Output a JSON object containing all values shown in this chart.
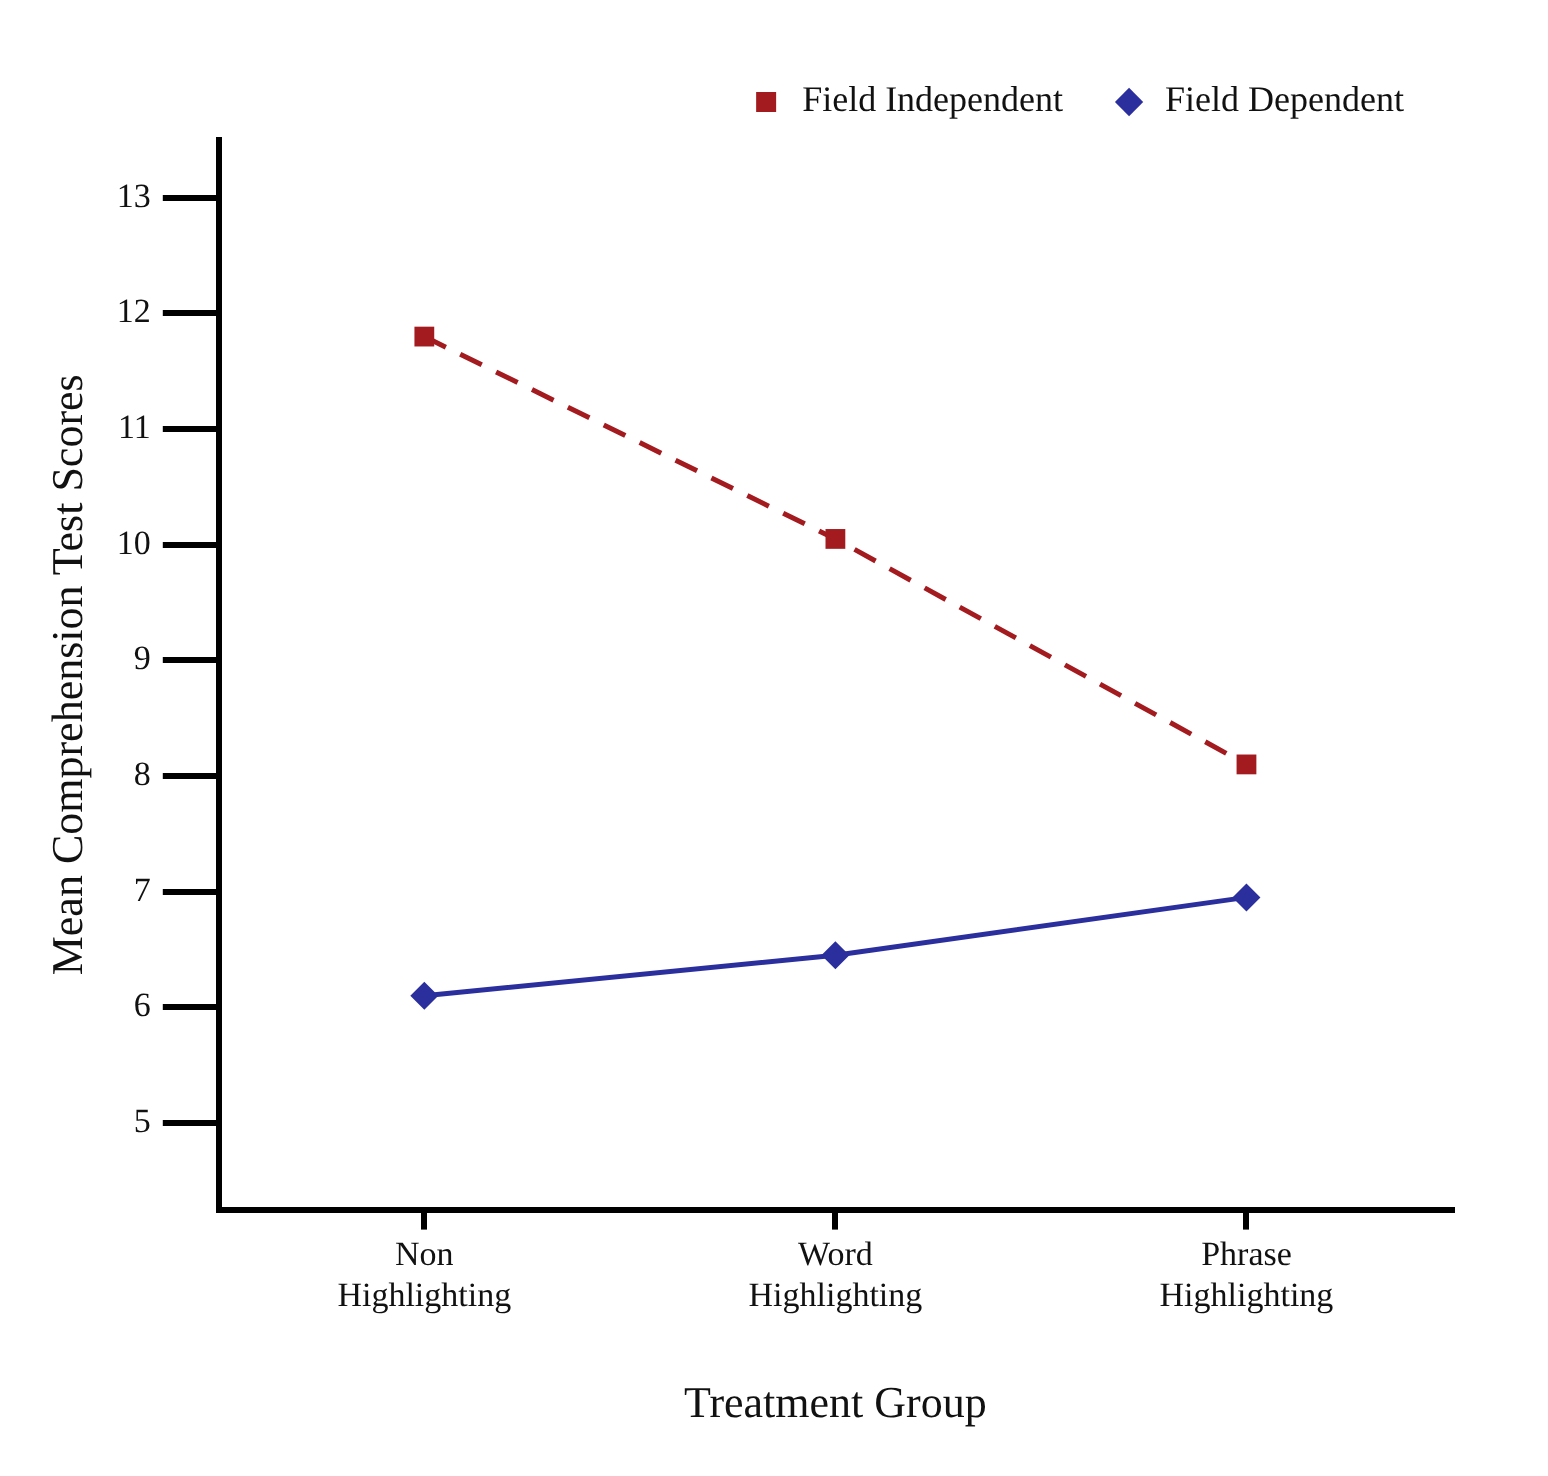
{
  "chart_data": {
    "type": "line",
    "xlabel": "Treatment Group",
    "ylabel": "Mean Comprehension Test Scores",
    "categories": [
      "Non Highlighting",
      "Word Highlighting",
      "Phrase Highlighting"
    ],
    "series": [
      {
        "name": "Field Independent",
        "color": "#a31b1f",
        "values": [
          11.8,
          10.05,
          8.1
        ],
        "marker": "square",
        "line_style": "dashed"
      },
      {
        "name": "Field Dependent",
        "color": "#2b2f9e",
        "values": [
          6.1,
          6.45,
          6.95
        ],
        "marker": "diamond",
        "line_style": "solid"
      }
    ],
    "ylim": [
      4.25,
      13.5
    ],
    "yticks": [
      5,
      6,
      7,
      8,
      9,
      10,
      11,
      12,
      13
    ],
    "grid": false,
    "legend": "top right"
  }
}
